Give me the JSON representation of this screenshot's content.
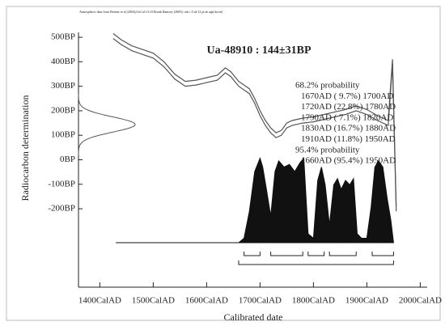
{
  "chart_data": {
    "type": "calibration",
    "note": "Atmospheric data from Reimer et al (2004);OxCal v3.10 Bronk Ramsey (2005); cub r:5 sd:12 prob usp[chron]",
    "title": "Ua-48910 : 144±31BP",
    "x_label": "Calibrated date",
    "y_label": "Radiocarbon determination",
    "xlim": [
      1360,
      2010
    ],
    "ylim": [
      -520,
      520
    ],
    "xticks": [
      {
        "value": 1400,
        "label": "1400CalAD"
      },
      {
        "value": 1500,
        "label": "1500CalAD"
      },
      {
        "value": 1600,
        "label": "1600CalAD"
      },
      {
        "value": 1700,
        "label": "1700CalAD"
      },
      {
        "value": 1800,
        "label": "1800CalAD"
      },
      {
        "value": 1900,
        "label": "1900CalAD"
      },
      {
        "value": 2000,
        "label": "2000CalAD"
      }
    ],
    "yticks": [
      {
        "value": 500,
        "label": "500BP"
      },
      {
        "value": 400,
        "label": "400BP"
      },
      {
        "value": 300,
        "label": "300BP"
      },
      {
        "value": 200,
        "label": "200BP"
      },
      {
        "value": 100,
        "label": "100BP"
      },
      {
        "value": 0,
        "label": "0BP"
      },
      {
        "value": -100,
        "label": "-100BP"
      },
      {
        "value": -200,
        "label": "-200BP"
      }
    ],
    "determination": {
      "mean": 144,
      "sd": 31
    },
    "curve": {
      "x": [
        1425,
        1440,
        1460,
        1480,
        1500,
        1520,
        1540,
        1560,
        1580,
        1600,
        1620,
        1635,
        1645,
        1660,
        1680,
        1690,
        1700,
        1710,
        1720,
        1730,
        1740,
        1750,
        1760,
        1780,
        1800,
        1820,
        1840,
        1860,
        1880,
        1900,
        1920,
        1940,
        1948,
        1955
      ],
      "values": [
        505,
        480,
        455,
        440,
        425,
        390,
        340,
        310,
        315,
        325,
        335,
        365,
        350,
        310,
        280,
        240,
        190,
        150,
        120,
        100,
        110,
        140,
        150,
        160,
        165,
        175,
        185,
        195,
        210,
        195,
        170,
        150,
        400,
        -200
      ],
      "error": 10,
      "color": "#555"
    },
    "distribution": {
      "x": [
        1430,
        1660,
        1670,
        1680,
        1690,
        1700,
        1705,
        1712,
        1720,
        1728,
        1735,
        1745,
        1755,
        1765,
        1775,
        1782,
        1790,
        1800,
        1808,
        1815,
        1822,
        1830,
        1838,
        1845,
        1852,
        1860,
        1868,
        1875,
        1882,
        1890,
        1900,
        1908,
        1915,
        1922,
        1930,
        1938,
        1945,
        1950
      ],
      "values": [
        0,
        0,
        0.05,
        0.35,
        0.8,
        0.95,
        0.85,
        0.6,
        0.3,
        0.8,
        0.92,
        0.85,
        0.88,
        0.8,
        0.9,
        0.95,
        0.1,
        0.05,
        0.7,
        0.85,
        0.65,
        0.2,
        0.65,
        0.72,
        0.6,
        0.7,
        0.65,
        0.72,
        0.1,
        0.05,
        0.05,
        0.4,
        0.85,
        0.92,
        0.85,
        0.5,
        0.25,
        0
      ],
      "color": "#111"
    },
    "prob68_label": "68.2% probability",
    "ranges68": [
      {
        "from": 1670,
        "to": 1700,
        "label": "1670AD ( 9.7%) 1700AD"
      },
      {
        "from": 1720,
        "to": 1780,
        "label": "1720AD (22.8%) 1780AD"
      },
      {
        "from": 1790,
        "to": 1820,
        "label": "1790AD ( 7.1%) 1820AD"
      },
      {
        "from": 1830,
        "to": 1880,
        "label": "1830AD (16.7%) 1880AD"
      },
      {
        "from": 1910,
        "to": 1950,
        "label": "1910AD (11.8%) 1950AD"
      }
    ],
    "prob95_label": "95.4% probability",
    "ranges95": [
      {
        "from": 1660,
        "to": 1950,
        "label": "1660AD (95.4%) 1950AD"
      }
    ]
  }
}
